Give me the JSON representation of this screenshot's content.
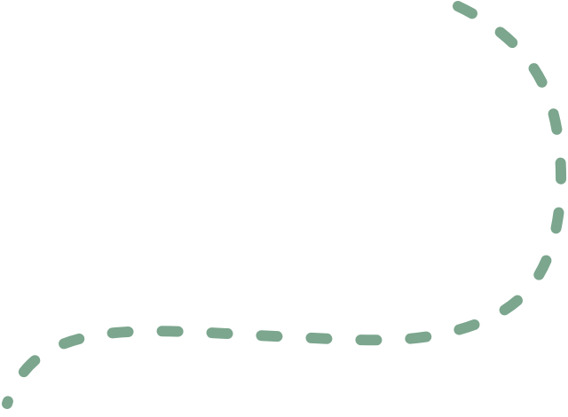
{
  "decoration": {
    "shape": "dashed-curve",
    "stroke_color": "#7ca68e",
    "background_color": "#ffffff"
  }
}
